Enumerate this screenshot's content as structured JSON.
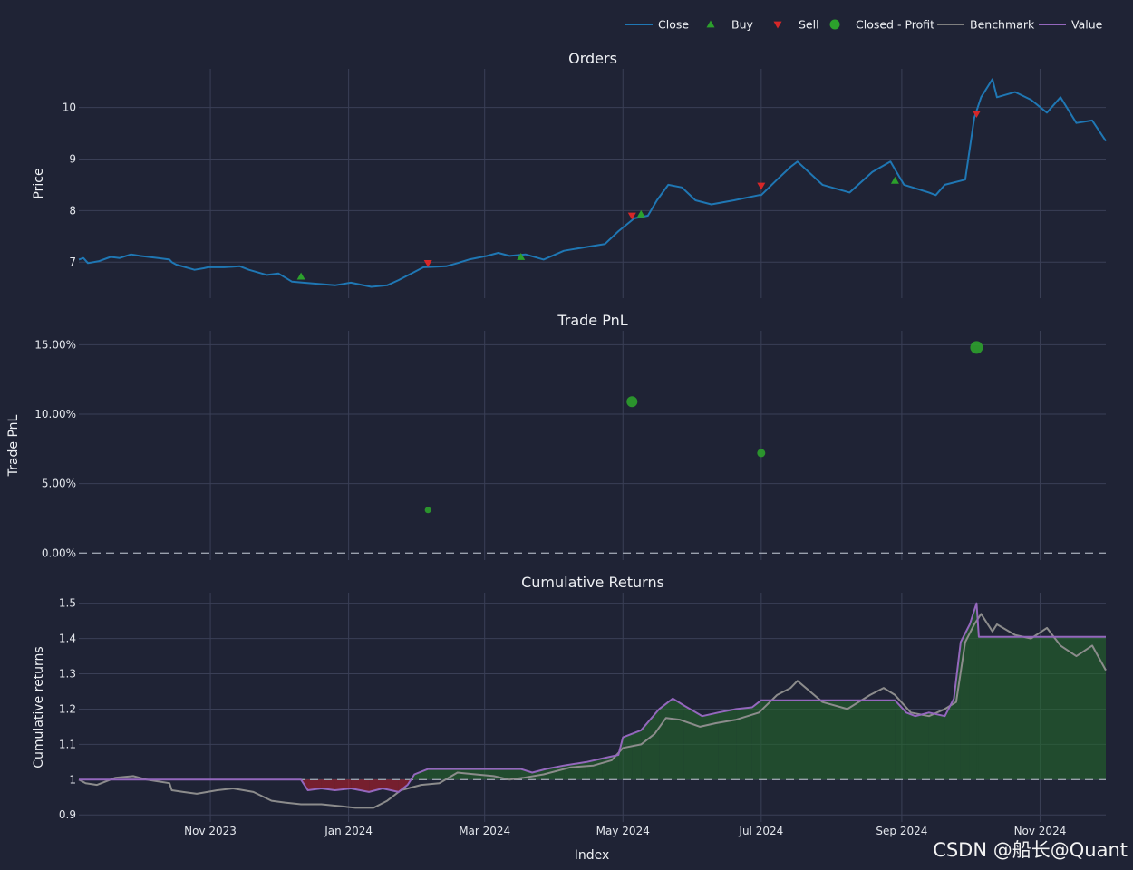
{
  "legend": [
    {
      "label": "Close",
      "color": "#1f77b4",
      "kind": "line"
    },
    {
      "label": "Buy",
      "color": "#2ca02c",
      "kind": "triangle-up"
    },
    {
      "label": "Sell",
      "color": "#d62728",
      "kind": "triangle-down"
    },
    {
      "label": "Closed - Profit",
      "color": "#2ca02c",
      "kind": "circle"
    },
    {
      "label": "Benchmark",
      "color": "#7f7f7f",
      "kind": "line"
    },
    {
      "label": "Value",
      "color": "#9467bd",
      "kind": "line"
    }
  ],
  "x_axis": {
    "label": "Index",
    "ticks": [
      "Nov 2023",
      "Jan 2024",
      "Mar 2024",
      "May 2024",
      "Jul 2024",
      "Sep 2024",
      "Nov 2024"
    ],
    "tick_dates": [
      "2023-11-01",
      "2024-01-01",
      "2024-03-01",
      "2024-05-01",
      "2024-07-01",
      "2024-09-01",
      "2024-11-01"
    ],
    "range": [
      "2023-09-04",
      "2024-11-30"
    ]
  },
  "watermark": "CSDN @船长@Quant",
  "chart_data": [
    {
      "type": "line",
      "title": "Orders",
      "ylabel": "Price",
      "ylim": [
        6.3,
        10.75
      ],
      "yticks": [
        {
          "v": 7,
          "t": "7"
        },
        {
          "v": 8,
          "t": "8"
        },
        {
          "v": 9,
          "t": "9"
        },
        {
          "v": 10,
          "t": "10"
        }
      ],
      "series": [
        {
          "name": "Close",
          "color": "#1f77b4",
          "x": [
            "2023-09-04",
            "2023-09-06",
            "2023-09-08",
            "2023-09-13",
            "2023-09-18",
            "2023-09-22",
            "2023-09-27",
            "2023-10-01",
            "2023-10-09",
            "2023-10-14",
            "2023-10-15",
            "2023-10-17",
            "2023-10-25",
            "2023-10-29",
            "2023-10-31",
            "2023-11-07",
            "2023-11-14",
            "2023-11-18",
            "2023-11-26",
            "2023-12-01",
            "2023-12-07",
            "2023-12-12",
            "2023-12-18",
            "2023-12-26",
            "2024-01-02",
            "2024-01-11",
            "2024-01-18",
            "2024-01-23",
            "2024-02-03",
            "2024-02-13",
            "2024-02-18",
            "2024-02-23",
            "2024-03-02",
            "2024-03-07",
            "2024-03-12",
            "2024-03-19",
            "2024-03-27",
            "2024-04-05",
            "2024-04-16",
            "2024-04-23",
            "2024-04-29",
            "2024-05-06",
            "2024-05-12",
            "2024-05-16",
            "2024-05-21",
            "2024-05-27",
            "2024-06-02",
            "2024-06-09",
            "2024-06-19",
            "2024-06-30",
            "2024-07-01",
            "2024-07-08",
            "2024-07-14",
            "2024-07-17",
            "2024-07-28",
            "2024-08-09",
            "2024-08-19",
            "2024-08-27",
            "2024-08-29",
            "2024-09-02",
            "2024-09-13",
            "2024-09-16",
            "2024-09-20",
            "2024-09-29",
            "2024-10-03",
            "2024-10-06",
            "2024-10-11",
            "2024-10-13",
            "2024-10-21",
            "2024-10-28",
            "2024-11-04",
            "2024-11-10",
            "2024-11-17",
            "2024-11-24",
            "2024-11-30"
          ],
          "y": [
            7.05,
            7.08,
            6.98,
            7.02,
            7.1,
            7.08,
            7.15,
            7.12,
            7.08,
            7.05,
            7.0,
            6.95,
            6.85,
            6.88,
            6.9,
            6.9,
            6.92,
            6.85,
            6.75,
            6.78,
            6.62,
            6.6,
            6.58,
            6.55,
            6.6,
            6.52,
            6.55,
            6.65,
            6.9,
            6.92,
            6.98,
            7.05,
            7.12,
            7.18,
            7.12,
            7.15,
            7.05,
            7.22,
            7.3,
            7.35,
            7.6,
            7.85,
            7.9,
            8.2,
            8.5,
            8.45,
            8.2,
            8.12,
            8.2,
            8.3,
            8.3,
            8.6,
            8.85,
            8.95,
            8.5,
            8.35,
            8.75,
            8.95,
            8.8,
            8.5,
            8.35,
            8.3,
            8.5,
            8.6,
            9.8,
            10.2,
            10.55,
            10.2,
            10.3,
            10.15,
            9.9,
            10.2,
            9.7,
            9.75,
            9.35
          ]
        }
      ],
      "markers": [
        {
          "name": "Buy",
          "shape": "triangle-up",
          "color": "#2ca02c",
          "points": [
            {
              "x": "2023-12-11",
              "y": 6.72
            },
            {
              "x": "2024-03-17",
              "y": 7.1
            },
            {
              "x": "2024-05-09",
              "y": 7.93
            },
            {
              "x": "2024-08-29",
              "y": 8.58
            }
          ]
        },
        {
          "name": "Sell",
          "shape": "triangle-down",
          "color": "#d62728",
          "points": [
            {
              "x": "2024-02-05",
              "y": 6.98
            },
            {
              "x": "2024-05-05",
              "y": 7.9
            },
            {
              "x": "2024-07-01",
              "y": 8.48
            },
            {
              "x": "2024-10-04",
              "y": 9.88
            }
          ]
        }
      ]
    },
    {
      "type": "scatter",
      "title": "Trade PnL",
      "ylabel": "Trade PnL",
      "ylim": [
        -0.005,
        0.16
      ],
      "yticks": [
        {
          "v": 0,
          "t": "0.00%"
        },
        {
          "v": 0.05,
          "t": "5.00%"
        },
        {
          "v": 0.1,
          "t": "10.00%"
        },
        {
          "v": 0.15,
          "t": "15.00%"
        }
      ],
      "zero_line": 0,
      "series": [
        {
          "name": "Closed - Profit",
          "color": "#2ca02c",
          "points": [
            {
              "x": "2024-02-05",
              "y": 0.031,
              "size": 3.5
            },
            {
              "x": "2024-05-05",
              "y": 0.109,
              "size": 6
            },
            {
              "x": "2024-07-01",
              "y": 0.072,
              "size": 4.5
            },
            {
              "x": "2024-10-04",
              "y": 0.148,
              "size": 7
            }
          ]
        }
      ]
    },
    {
      "type": "area",
      "title": "Cumulative Returns",
      "ylabel": "Cumulative returns",
      "xlabel": "Index",
      "ylim": [
        0.88,
        1.53
      ],
      "yticks": [
        {
          "v": 0.9,
          "t": "0.9"
        },
        {
          "v": 1,
          "t": "1"
        },
        {
          "v": 1.1,
          "t": "1.1"
        },
        {
          "v": 1.2,
          "t": "1.2"
        },
        {
          "v": 1.3,
          "t": "1.3"
        },
        {
          "v": 1.4,
          "t": "1.4"
        },
        {
          "v": 1.5,
          "t": "1.5"
        }
      ],
      "baseline": 1,
      "series": [
        {
          "name": "Value",
          "color": "#9467bd",
          "x": [
            "2023-09-04",
            "2023-12-11",
            "2023-12-14",
            "2023-12-20",
            "2023-12-26",
            "2024-01-02",
            "2024-01-10",
            "2024-01-16",
            "2024-01-23",
            "2024-01-27",
            "2024-01-30",
            "2024-02-05",
            "2024-03-17",
            "2024-03-22",
            "2024-03-28",
            "2024-04-05",
            "2024-04-15",
            "2024-04-22",
            "2024-04-29",
            "2024-05-01",
            "2024-05-05",
            "2024-05-09",
            "2024-05-17",
            "2024-05-23",
            "2024-05-28",
            "2024-06-05",
            "2024-06-12",
            "2024-06-20",
            "2024-06-27",
            "2024-07-01",
            "2024-08-29",
            "2024-09-03",
            "2024-09-07",
            "2024-09-13",
            "2024-09-20",
            "2024-09-24",
            "2024-09-27",
            "2024-10-01",
            "2024-10-04",
            "2024-10-05",
            "2024-11-30"
          ],
          "y": [
            1.0,
            1.0,
            0.97,
            0.975,
            0.97,
            0.975,
            0.965,
            0.975,
            0.965,
            0.985,
            1.015,
            1.03,
            1.03,
            1.02,
            1.03,
            1.04,
            1.05,
            1.06,
            1.07,
            1.12,
            1.13,
            1.14,
            1.2,
            1.23,
            1.21,
            1.18,
            1.19,
            1.2,
            1.205,
            1.225,
            1.225,
            1.19,
            1.18,
            1.19,
            1.18,
            1.23,
            1.39,
            1.44,
            1.5,
            1.405,
            1.405
          ]
        },
        {
          "name": "Benchmark",
          "color": "#8c8c8c",
          "x": [
            "2023-09-04",
            "2023-09-07",
            "2023-09-12",
            "2023-09-20",
            "2023-09-28",
            "2023-10-04",
            "2023-10-09",
            "2023-10-14",
            "2023-10-15",
            "2023-10-20",
            "2023-10-26",
            "2023-11-04",
            "2023-11-11",
            "2023-11-20",
            "2023-11-28",
            "2023-12-04",
            "2023-12-11",
            "2023-12-20",
            "2023-12-28",
            "2024-01-04",
            "2024-01-12",
            "2024-01-18",
            "2024-01-24",
            "2024-02-02",
            "2024-02-10",
            "2024-02-18",
            "2024-02-26",
            "2024-03-05",
            "2024-03-12",
            "2024-03-18",
            "2024-03-27",
            "2024-04-08",
            "2024-04-18",
            "2024-04-26",
            "2024-05-01",
            "2024-05-09",
            "2024-05-15",
            "2024-05-20",
            "2024-05-26",
            "2024-06-04",
            "2024-06-11",
            "2024-06-20",
            "2024-06-30",
            "2024-07-08",
            "2024-07-14",
            "2024-07-17",
            "2024-07-28",
            "2024-08-08",
            "2024-08-18",
            "2024-08-24",
            "2024-08-29",
            "2024-09-05",
            "2024-09-13",
            "2024-09-20",
            "2024-09-25",
            "2024-09-29",
            "2024-10-03",
            "2024-10-06",
            "2024-10-11",
            "2024-10-13",
            "2024-10-21",
            "2024-10-28",
            "2024-11-04",
            "2024-11-10",
            "2024-11-17",
            "2024-11-24",
            "2024-11-30"
          ],
          "y": [
            1.0,
            0.99,
            0.985,
            1.005,
            1.01,
            1.0,
            0.995,
            0.99,
            0.97,
            0.965,
            0.96,
            0.97,
            0.975,
            0.965,
            0.94,
            0.935,
            0.93,
            0.93,
            0.925,
            0.92,
            0.92,
            0.94,
            0.97,
            0.985,
            0.99,
            1.02,
            1.015,
            1.01,
            1.0,
            1.005,
            1.015,
            1.035,
            1.04,
            1.055,
            1.09,
            1.1,
            1.13,
            1.175,
            1.17,
            1.15,
            1.16,
            1.17,
            1.19,
            1.24,
            1.26,
            1.28,
            1.22,
            1.2,
            1.24,
            1.26,
            1.24,
            1.19,
            1.18,
            1.2,
            1.22,
            1.39,
            1.44,
            1.47,
            1.42,
            1.44,
            1.41,
            1.4,
            1.43,
            1.38,
            1.35,
            1.38,
            1.31
          ]
        }
      ]
    }
  ]
}
